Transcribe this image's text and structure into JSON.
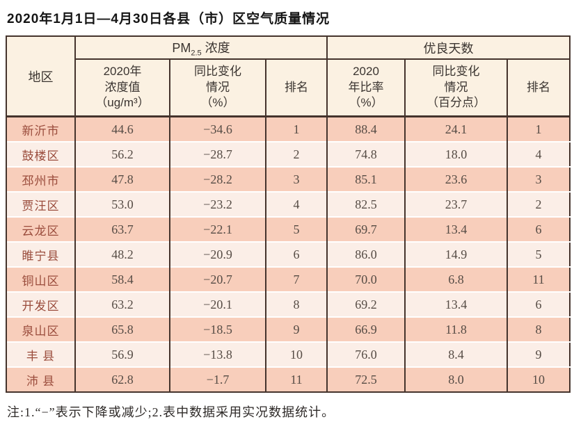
{
  "title": "2020年1月1日—4月30日各县（市）区空气质量情况",
  "note": "注:1.“−”表示下降或减少;2.表中数据采用实况数据统计。",
  "colors": {
    "row_salmon": "#f8cebb",
    "row_light": "#fbeee7",
    "header_bg": "#fbf1e2",
    "border": "#44332c",
    "region_text": "#9a4c3c",
    "number_text": "#564c45"
  },
  "table": {
    "region_header": "地区",
    "pm_group": {
      "prefix": "PM",
      "subscript": "2.5",
      "suffix": " 浓度"
    },
    "days_group": "优良天数",
    "sub_headers": {
      "pm_value": "2020年\n浓度值\n（ug/m³）",
      "pm_change": "同比变化\n情况\n（%）",
      "pm_rank": "排名",
      "days_ratio": "2020\n年比率\n（%）",
      "days_change": "同比变化\n情况\n（百分点）",
      "days_rank": "排名"
    },
    "columns": [
      "region",
      "pm_value",
      "pm_change",
      "pm_rank",
      "days_ratio",
      "days_change",
      "days_rank"
    ],
    "rows": [
      {
        "region": "新沂市",
        "pm_value": "44.6",
        "pm_change": "−34.6",
        "pm_rank": "1",
        "days_ratio": "88.4",
        "days_change": "24.1",
        "days_rank": "1"
      },
      {
        "region": "鼓楼区",
        "pm_value": "56.2",
        "pm_change": "−28.7",
        "pm_rank": "2",
        "days_ratio": "74.8",
        "days_change": "18.0",
        "days_rank": "4"
      },
      {
        "region": "邳州市",
        "pm_value": "47.8",
        "pm_change": "−28.2",
        "pm_rank": "3",
        "days_ratio": "85.1",
        "days_change": "23.6",
        "days_rank": "3"
      },
      {
        "region": "贾汪区",
        "pm_value": "53.0",
        "pm_change": "−23.2",
        "pm_rank": "4",
        "days_ratio": "82.5",
        "days_change": "23.7",
        "days_rank": "2"
      },
      {
        "region": "云龙区",
        "pm_value": "63.7",
        "pm_change": "−22.1",
        "pm_rank": "5",
        "days_ratio": "69.7",
        "days_change": "13.4",
        "days_rank": "6"
      },
      {
        "region": "睢宁县",
        "pm_value": "48.2",
        "pm_change": "−20.9",
        "pm_rank": "6",
        "days_ratio": "86.0",
        "days_change": "14.9",
        "days_rank": "5"
      },
      {
        "region": "铜山区",
        "pm_value": "58.4",
        "pm_change": "−20.7",
        "pm_rank": "7",
        "days_ratio": "70.0",
        "days_change": "6.8",
        "days_rank": "11"
      },
      {
        "region": "开发区",
        "pm_value": "63.2",
        "pm_change": "−20.1",
        "pm_rank": "8",
        "days_ratio": "69.2",
        "days_change": "13.4",
        "days_rank": "6"
      },
      {
        "region": "泉山区",
        "pm_value": "65.8",
        "pm_change": "−18.5",
        "pm_rank": "9",
        "days_ratio": "66.9",
        "days_change": "11.8",
        "days_rank": "8"
      },
      {
        "region": "丰 县",
        "pm_value": "56.9",
        "pm_change": "−13.8",
        "pm_rank": "10",
        "days_ratio": "76.0",
        "days_change": "8.4",
        "days_rank": "9"
      },
      {
        "region": "沛 县",
        "pm_value": "62.8",
        "pm_change": "−1.7",
        "pm_rank": "11",
        "days_ratio": "72.5",
        "days_change": "8.0",
        "days_rank": "10"
      }
    ]
  }
}
